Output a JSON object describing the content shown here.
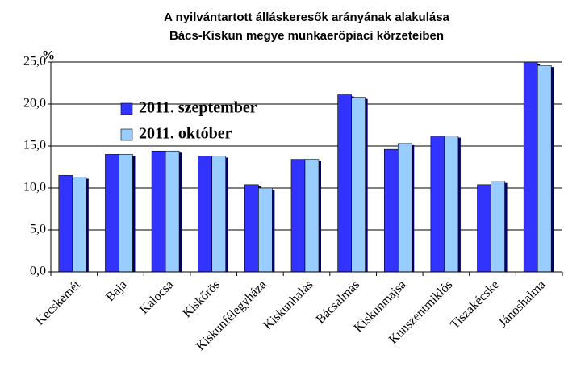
{
  "chart_data": {
    "type": "bar",
    "title": "A nyilvántartott álláskeresők arányának alakulása",
    "subtitle": "Bács-Kiskun megye munkaerőpiaci körzeteiben",
    "y_label": "%",
    "categories": [
      "Kecskemét",
      "Baja",
      "Kalocsa",
      "Kiskőrös",
      "Kiskunfélegyháza",
      "Kiskunhalas",
      "Bácsalmás",
      "Kiskunmajsa",
      "Kunszentmiklós",
      "Tiszakécske",
      "Jánoshalma"
    ],
    "series": [
      {
        "name": "2011. szeptember",
        "color": "#3333ff",
        "values": [
          11.5,
          14.0,
          14.4,
          13.8,
          10.4,
          13.4,
          21.1,
          14.6,
          16.2,
          10.4,
          25.0
        ]
      },
      {
        "name": "2011. október",
        "color": "#99ccff",
        "values": [
          11.3,
          14.0,
          14.4,
          13.8,
          10.0,
          13.4,
          20.8,
          15.3,
          16.2,
          10.8,
          24.6
        ]
      }
    ],
    "ylim": [
      0,
      25
    ],
    "yticks": [
      {
        "value": 0,
        "label": "0,0"
      },
      {
        "value": 5,
        "label": "5,0"
      },
      {
        "value": 10,
        "label": "10,0"
      },
      {
        "value": 15,
        "label": "15,0"
      },
      {
        "value": 20,
        "label": "20,0"
      },
      {
        "value": 25,
        "label": "25,0"
      }
    ],
    "grid": true,
    "legend": "top-left"
  }
}
